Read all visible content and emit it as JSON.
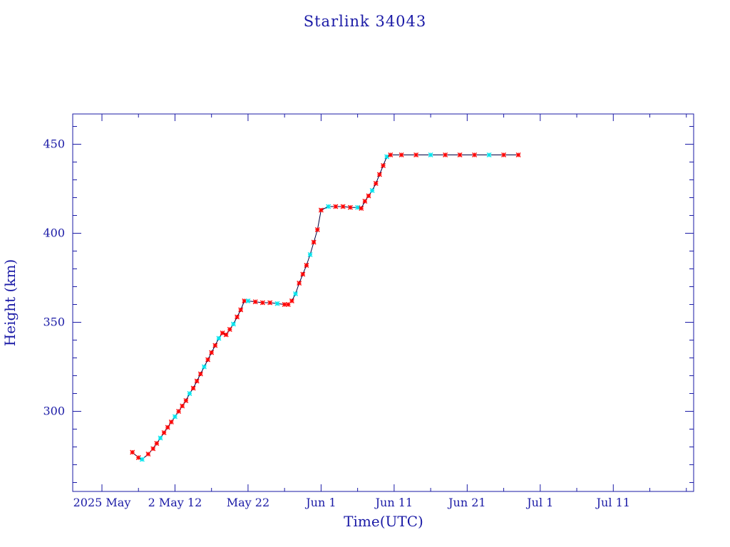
{
  "chart_data": {
    "type": "scatter",
    "title": "Starlink 34043",
    "xlabel": "Time(UTC)",
    "ylabel": "Height (km)",
    "xlim": [
      "2025-04-28",
      "2025-07-22"
    ],
    "ylim": [
      255,
      467
    ],
    "x_tick_labels": [
      "2025 May",
      "2 May 12",
      "May 22",
      "Jun  1",
      "Jun 11",
      "Jun 21",
      "Jul  1",
      "Jul 11"
    ],
    "x_tick_dates": [
      "2025-05-02",
      "2025-05-12",
      "2025-05-22",
      "2025-06-01",
      "2025-06-11",
      "2025-06-21",
      "2025-07-01",
      "2025-07-11"
    ],
    "y_ticks": [
      300,
      350,
      400,
      450
    ],
    "grid": false,
    "colors": {
      "axis": "#1a1aa6",
      "line": "#000040",
      "marker_primary": "#ff0000",
      "marker_secondary": "#00e5ee"
    },
    "series": [
      {
        "x": [
          "2025-05-06T04:00",
          "2025-05-07T00:00",
          "2025-05-07T12:00",
          "2025-05-08T08:00",
          "2025-05-09T00:00",
          "2025-05-09T12:00",
          "2025-05-10T00:00",
          "2025-05-10T12:00",
          "2025-05-11T00:00",
          "2025-05-11T12:00",
          "2025-05-12T00:00",
          "2025-05-12T12:00",
          "2025-05-13T00:00",
          "2025-05-13T12:00",
          "2025-05-14T00:00",
          "2025-05-14T12:00",
          "2025-05-15T00:00",
          "2025-05-15T12:00",
          "2025-05-16T00:00",
          "2025-05-16T12:00",
          "2025-05-17T00:00",
          "2025-05-17T12:00",
          "2025-05-18T00:00",
          "2025-05-18T12:00",
          "2025-05-19T00:00",
          "2025-05-19T12:00",
          "2025-05-20T00:00",
          "2025-05-20T12:00",
          "2025-05-21T00:00",
          "2025-05-21T12:00",
          "2025-05-22T00:00",
          "2025-05-23T00:00",
          "2025-05-24T00:00",
          "2025-05-25T00:00",
          "2025-05-26T00:00",
          "2025-05-27T00:00",
          "2025-05-27T12:00",
          "2025-05-28T00:00",
          "2025-05-28T12:00",
          "2025-05-29T00:00",
          "2025-05-29T12:00",
          "2025-05-30T00:00",
          "2025-05-30T12:00",
          "2025-05-31T00:00",
          "2025-05-31T12:00",
          "2025-06-01T00:00",
          "2025-06-02T00:00",
          "2025-06-03T00:00",
          "2025-06-04T00:00",
          "2025-06-05T00:00",
          "2025-06-06T00:00",
          "2025-06-06T12:00",
          "2025-06-07T00:00",
          "2025-06-07T12:00",
          "2025-06-08T00:00",
          "2025-06-08T12:00",
          "2025-06-09T00:00",
          "2025-06-09T12:00",
          "2025-06-10T00:00",
          "2025-06-10T12:00",
          "2025-06-12T00:00",
          "2025-06-14T00:00",
          "2025-06-16T00:00",
          "2025-06-18T00:00",
          "2025-06-20T00:00",
          "2025-06-22T00:00",
          "2025-06-24T00:00",
          "2025-06-26T00:00",
          "2025-06-28T00:00"
        ],
        "y": [
          277,
          274,
          273,
          276,
          279,
          282,
          285,
          288,
          291,
          294,
          297,
          300,
          303,
          306,
          310,
          313,
          317,
          321,
          325,
          329,
          333,
          337,
          341,
          344,
          343,
          346,
          349,
          353,
          357,
          362,
          362,
          361.5,
          361,
          361,
          360.5,
          360,
          360,
          362,
          366,
          372,
          377,
          382,
          388,
          395,
          402,
          413,
          415,
          415,
          415,
          414.5,
          414.5,
          414,
          418,
          421,
          424,
          428,
          433,
          438,
          443,
          444,
          444,
          444,
          444,
          444,
          444,
          444,
          444,
          444,
          444
        ]
      }
    ]
  }
}
